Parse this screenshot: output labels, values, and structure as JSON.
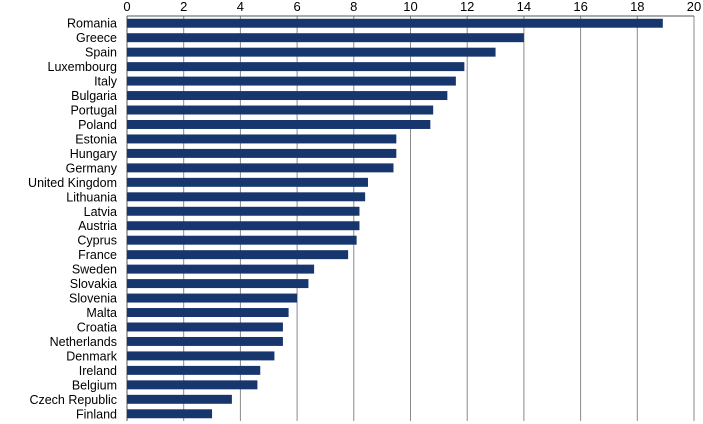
{
  "chart_data": {
    "type": "bar",
    "orientation": "horizontal",
    "title": "",
    "xlabel": "",
    "ylabel": "",
    "xlim": [
      0,
      20
    ],
    "xticks": [
      0,
      2,
      4,
      6,
      8,
      10,
      12,
      14,
      16,
      18,
      20
    ],
    "x_axis_position": "top",
    "grid": true,
    "legend": "none",
    "bar_color": "#17366e",
    "categories": [
      "Romania",
      "Greece",
      "Spain",
      "Luxembourg",
      "Italy",
      "Bulgaria",
      "Portugal",
      "Poland",
      "Estonia",
      "Hungary",
      "Germany",
      "United Kingdom",
      "Lithuania",
      "Latvia",
      "Austria",
      "Cyprus",
      "France",
      "Sweden",
      "Slovakia",
      "Slovenia",
      "Malta",
      "Croatia",
      "Netherlands",
      "Denmark",
      "Ireland",
      "Belgium",
      "Czech Republic",
      "Finland"
    ],
    "values": [
      18.9,
      14.0,
      13.0,
      11.9,
      11.6,
      11.3,
      10.8,
      10.7,
      9.5,
      9.5,
      9.4,
      8.5,
      8.4,
      8.2,
      8.2,
      8.1,
      7.8,
      6.6,
      6.4,
      6.0,
      5.7,
      5.5,
      5.5,
      5.2,
      4.7,
      4.6,
      3.7,
      3.0
    ]
  }
}
